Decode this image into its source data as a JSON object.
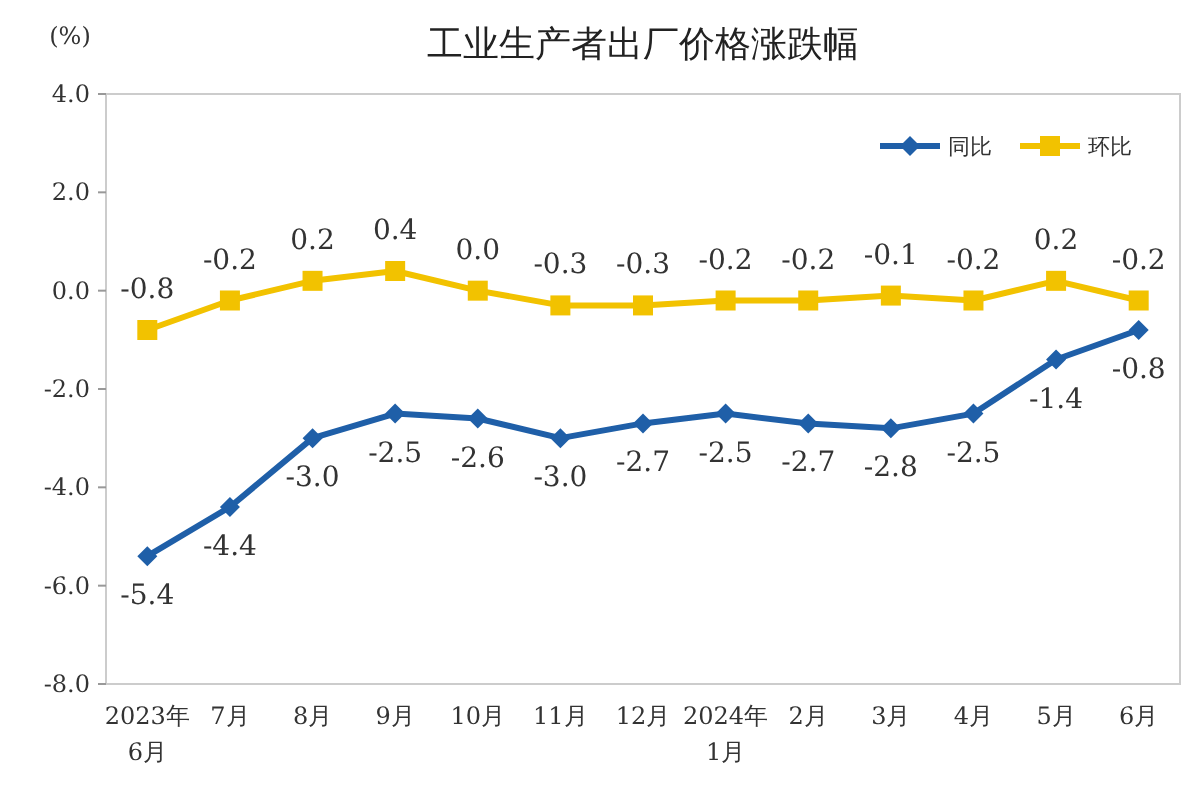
{
  "chart_data": {
    "type": "line",
    "title": "工业生产者出厂价格涨跌幅",
    "ylabel": "(%)",
    "categories": [
      "2023年\n6月",
      "7月",
      "8月",
      "9月",
      "10月",
      "11月",
      "12月",
      "2024年\n1月",
      "2月",
      "3月",
      "4月",
      "5月",
      "6月"
    ],
    "series": [
      {
        "name": "同比",
        "color": "#1f5fa8",
        "marker": "diamond",
        "values": [
          -5.4,
          -4.4,
          -3.0,
          -2.5,
          -2.6,
          -3.0,
          -2.7,
          -2.5,
          -2.7,
          -2.8,
          -2.5,
          -1.4,
          -0.8
        ],
        "value_labels": [
          "-5.4",
          "-4.4",
          "-3.0",
          "-2.5",
          "-2.6",
          "-3.0",
          "-2.7",
          "-2.5",
          "-2.7",
          "-2.8",
          "-2.5",
          "-1.4",
          "-0.8"
        ]
      },
      {
        "name": "环比",
        "color": "#f2c200",
        "marker": "square",
        "values": [
          -0.8,
          -0.2,
          0.2,
          0.4,
          0.0,
          -0.3,
          -0.3,
          -0.2,
          -0.2,
          -0.1,
          -0.2,
          0.2,
          -0.2
        ],
        "value_labels": [
          "-0.8",
          "-0.2",
          "0.2",
          "0.4",
          "0.0",
          "-0.3",
          "-0.3",
          "-0.2",
          "-0.2",
          "-0.1",
          "-0.2",
          "0.2",
          "-0.2"
        ]
      }
    ],
    "ylim": [
      -8,
      4
    ],
    "yticks": [
      {
        "value": 4,
        "label": "4.0"
      },
      {
        "value": 2,
        "label": "2.0"
      },
      {
        "value": 0,
        "label": "0.0"
      },
      {
        "value": -2,
        "label": "-2.0"
      },
      {
        "value": -4,
        "label": "-4.0"
      },
      {
        "value": -6,
        "label": "-6.0"
      },
      {
        "value": -8,
        "label": "-8.0"
      }
    ],
    "legend": "top right",
    "line_style": "solid"
  }
}
